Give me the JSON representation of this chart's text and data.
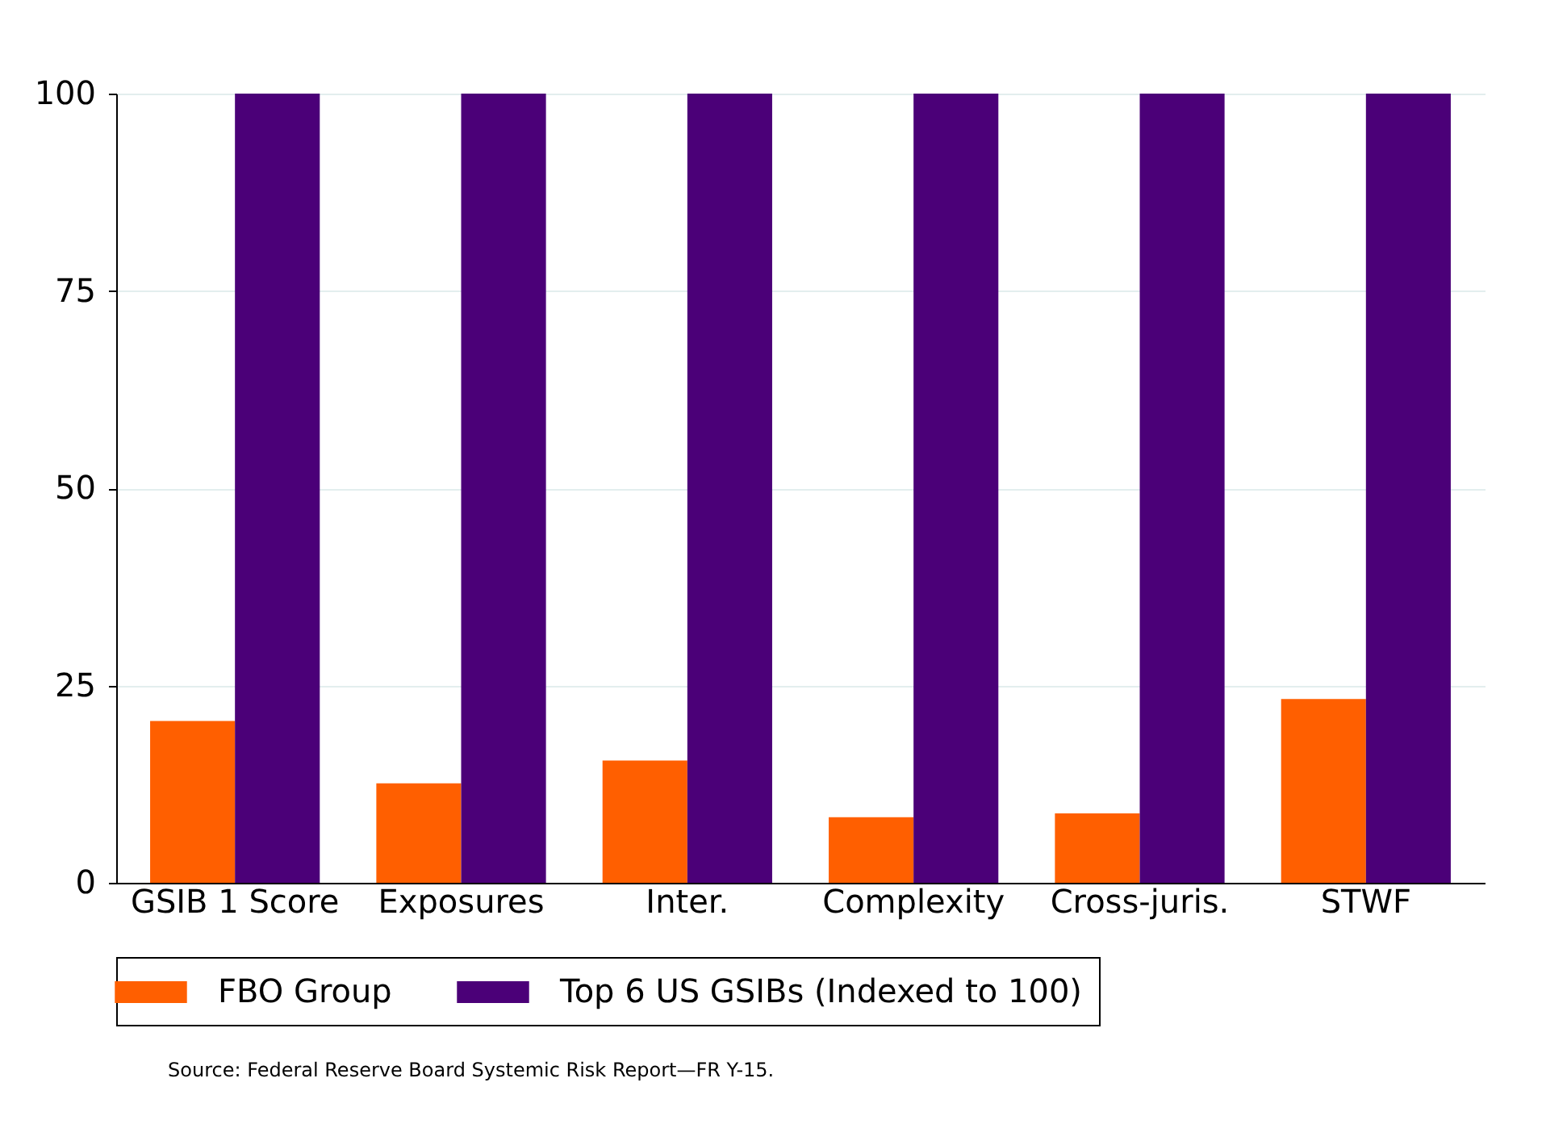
{
  "chart_data": {
    "type": "bar",
    "categories": [
      "GSIB 1 Score",
      "Exposures",
      "Inter.",
      "Complexity",
      "Cross-juris.",
      "STWF"
    ],
    "series": [
      {
        "name": "FBO Group",
        "color": "#ff5f00",
        "values": [
          20.5,
          12.6,
          15.5,
          8.3,
          8.8,
          23.3
        ]
      },
      {
        "name": "Top 6 US GSIBs (Indexed to 100)",
        "color": "#4b0078",
        "values": [
          100,
          100,
          100,
          100,
          100,
          100
        ]
      }
    ],
    "ylim": [
      0,
      100
    ],
    "yticks": [
      0,
      25,
      50,
      75,
      100
    ],
    "grid": "y",
    "legend": "bottom",
    "annotations": [
      "Source: Federal Reserve Board Systemic Risk Report—FR Y-15."
    ]
  }
}
